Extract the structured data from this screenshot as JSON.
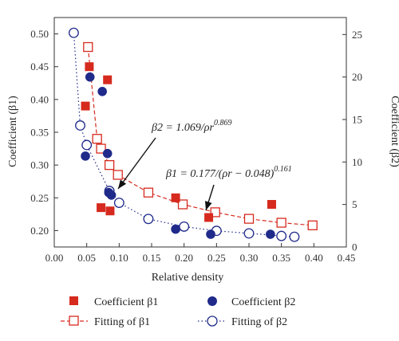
{
  "chart_data": {
    "type": "scatter",
    "xlabel": "Relative density",
    "ylabel_left": "Coefficient (β1)",
    "ylabel_right": "Coefficient (β2)",
    "xlim": [
      0.0,
      0.45
    ],
    "ylim_left": [
      0.175,
      0.525
    ],
    "ylim_right": [
      0,
      27
    ],
    "x_ticks": [
      "0.00",
      "0.05",
      "0.10",
      "0.15",
      "0.20",
      "0.25",
      "0.30",
      "0.35",
      "0.40",
      "0.45"
    ],
    "y_left_ticks": [
      "0.20",
      "0.25",
      "0.30",
      "0.35",
      "0.40",
      "0.45",
      "0.50"
    ],
    "y_right_ticks": [
      "0",
      "5",
      "10",
      "15",
      "20",
      "25"
    ],
    "grid": false,
    "legend_placement": "bottom",
    "legend": [
      {
        "label": "Coefficient β1",
        "marker": "square-filled",
        "color": "#d62a1e"
      },
      {
        "label": "Coefficient β2",
        "marker": "circle-filled",
        "color": "#1f2a8a"
      },
      {
        "label": "Fitting of β1",
        "marker": "square-open-dashed",
        "color": "#d62a1e"
      },
      {
        "label": "Fitting of β2",
        "marker": "circle-open-dotted",
        "color": "#1f2a8a"
      }
    ],
    "series": [
      {
        "name": "Coefficient β1",
        "axis": "left",
        "kind": "points",
        "color": "#d62a1e",
        "x": [
          0.048,
          0.054,
          0.072,
          0.082,
          0.086,
          0.187,
          0.238,
          0.335
        ],
        "y": [
          0.39,
          0.45,
          0.235,
          0.43,
          0.23,
          0.25,
          0.22,
          0.24
        ]
      },
      {
        "name": "Coefficient β2",
        "axis": "right",
        "kind": "points",
        "color": "#1f2a8a",
        "x": [
          0.048,
          0.055,
          0.074,
          0.082,
          0.084,
          0.088,
          0.187,
          0.241,
          0.333
        ],
        "y": [
          10.7,
          20.0,
          18.3,
          11.0,
          6.4,
          6.1,
          2.1,
          1.5,
          1.5
        ]
      },
      {
        "name": "Fitting of β1",
        "axis": "left",
        "kind": "fit",
        "color": "#d62a1e",
        "x": [
          0.052,
          0.066,
          0.072,
          0.085,
          0.098,
          0.145,
          0.198,
          0.248,
          0.3,
          0.35,
          0.398
        ],
        "y": [
          0.48,
          0.34,
          0.325,
          0.3,
          0.285,
          0.258,
          0.24,
          0.228,
          0.218,
          0.212,
          0.208
        ]
      },
      {
        "name": "Fitting of β2",
        "axis": "right",
        "kind": "fit",
        "color": "#1f2a8a",
        "x": [
          0.03,
          0.04,
          0.05,
          0.085,
          0.1,
          0.145,
          0.2,
          0.25,
          0.3,
          0.35,
          0.37
        ],
        "y": [
          25.2,
          14.3,
          12.0,
          6.6,
          5.2,
          3.3,
          2.4,
          1.9,
          1.6,
          1.3,
          1.2
        ]
      }
    ],
    "annotations": [
      {
        "base": "β2 = 1.069/ρr",
        "exponent": "0.869"
      },
      {
        "base": "β1 = 0.177/(ρr − 0.048)",
        "exponent": "0.161"
      }
    ]
  }
}
